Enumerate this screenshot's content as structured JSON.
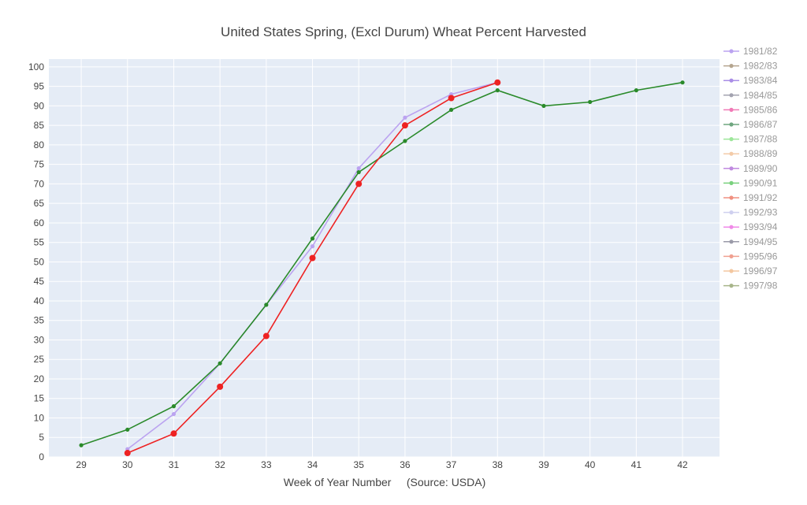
{
  "chart_data": {
    "type": "line",
    "title": "United States Spring, (Excl Durum) Wheat Percent Harvested",
    "xlabel": "Week of Year Number     (Source: USDA)",
    "ylabel": "",
    "xlim": [
      28.3,
      42.8
    ],
    "ylim": [
      0,
      102
    ],
    "x_ticks": [
      29,
      30,
      31,
      32,
      33,
      34,
      35,
      36,
      37,
      38,
      39,
      40,
      41,
      42
    ],
    "y_ticks": [
      0,
      5,
      10,
      15,
      20,
      25,
      30,
      35,
      40,
      45,
      50,
      55,
      60,
      65,
      70,
      75,
      80,
      85,
      90,
      95,
      100
    ],
    "grid": true,
    "legend_position": "right",
    "series": [
      {
        "name": "1981/82",
        "color": "#bba3f0",
        "x": [
          30,
          31,
          32,
          33,
          34,
          35,
          36,
          37,
          38
        ],
        "y": [
          2,
          11,
          24,
          39,
          54,
          74,
          87,
          93,
          96
        ]
      },
      {
        "name": "1982/83",
        "color": "#b5a58f",
        "x": [],
        "y": []
      },
      {
        "name": "1983/84",
        "color": "#a98de6",
        "x": [],
        "y": []
      },
      {
        "name": "1984/85",
        "color": "#a3a3b0",
        "x": [],
        "y": []
      },
      {
        "name": "1985/86",
        "color": "#f07ab6",
        "x": [],
        "y": []
      },
      {
        "name": "1986/87",
        "color": "#6fa67f",
        "x": [],
        "y": []
      },
      {
        "name": "1987/88",
        "color": "#9de69a",
        "x": [],
        "y": []
      },
      {
        "name": "1988/89",
        "color": "#f3cba8",
        "x": [],
        "y": []
      },
      {
        "name": "1989/90",
        "color": "#c08ae0",
        "x": [],
        "y": []
      },
      {
        "name": "1990/91",
        "color": "#7ad17e",
        "x": [],
        "y": []
      },
      {
        "name": "1991/92",
        "color": "#f09080",
        "x": [],
        "y": []
      },
      {
        "name": "1992/93",
        "color": "#cfd0ef",
        "x": [],
        "y": []
      },
      {
        "name": "1993/94",
        "color": "#f08ae8",
        "x": [],
        "y": []
      },
      {
        "name": "1994/95",
        "color": "#9a9aa8",
        "x": [],
        "y": []
      },
      {
        "name": "1995/96",
        "color": "#f0a090",
        "x": [],
        "y": []
      },
      {
        "name": "1996/97",
        "color": "#f3c7a0",
        "x": [],
        "y": []
      },
      {
        "name": "1997/98",
        "color": "#a8b58a",
        "x": [],
        "y": []
      },
      {
        "name": "",
        "color": "#2a8a2a",
        "x": [
          29,
          30,
          31,
          32,
          33,
          34,
          35,
          36,
          37,
          38,
          39,
          40,
          41,
          42
        ],
        "y": [
          3,
          7,
          13,
          24,
          39,
          56,
          73,
          81,
          89,
          94,
          90,
          91,
          94,
          96
        ]
      },
      {
        "name": "",
        "color": "#ee2222",
        "x": [
          30,
          31,
          32,
          33,
          34,
          35,
          36,
          37,
          38
        ],
        "y": [
          1,
          6,
          18,
          31,
          51,
          70,
          85,
          92,
          96
        ]
      }
    ]
  }
}
